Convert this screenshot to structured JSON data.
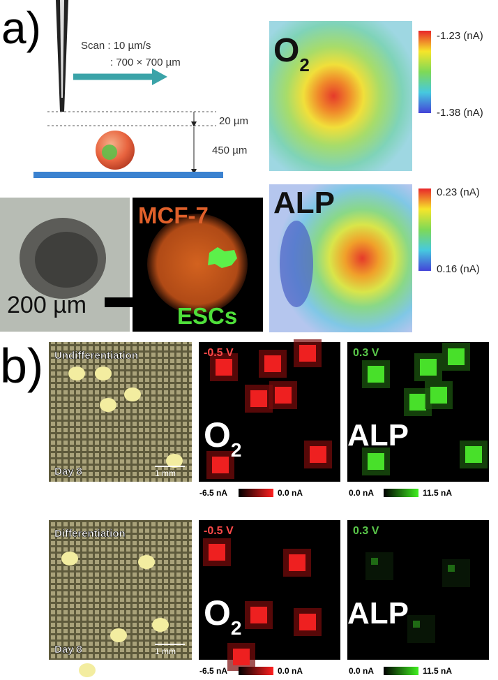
{
  "panel_a": {
    "label": "a)",
    "scan_speed": "Scan : 10 µm/s",
    "scan_area": ": 700 × 700 µm",
    "gap": "20 µm",
    "height": "450 µm",
    "scale_bar": "200 µm",
    "cell_red": "MCF-7",
    "cell_green": "ESCs",
    "o2_map": {
      "label": {
        "main": "O",
        "sub": "2"
      },
      "max": "-1.23 (nA)",
      "min": "-1.38 (nA)"
    },
    "alp_map": {
      "label": "ALP",
      "max": "0.23 (nA)",
      "min": "0.16 (nA)"
    }
  },
  "panel_b": {
    "label": "b)",
    "rows": [
      {
        "phase": "Undifferentiation",
        "day": "Day 8",
        "scale_bar": "1 mm",
        "o2_voltage": "-0.5 V",
        "o2_label": {
          "main": "O",
          "sub": "2"
        },
        "o2_min": "-6.5 nA",
        "o2_max": "0.0 nA",
        "alp_voltage": "0.3 V",
        "alp_label": "ALP",
        "alp_min": "0.0 nA",
        "alp_max": "11.5 nA"
      },
      {
        "phase": "Differentiation",
        "day": "Day 8",
        "scale_bar": "1 mm",
        "o2_voltage": "-0.5 V",
        "o2_label": {
          "main": "O",
          "sub": "2"
        },
        "o2_min": "-6.5 nA",
        "o2_max": "0.0 nA",
        "alp_voltage": "0.3 V",
        "alp_label": "ALP",
        "alp_min": "0.0 nA",
        "alp_max": "11.5 nA"
      }
    ]
  }
}
